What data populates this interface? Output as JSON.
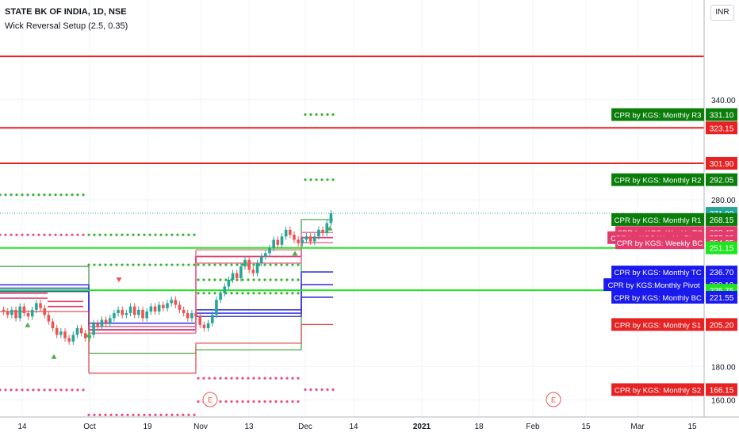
{
  "header": {
    "title": "STATE BK OF INDIA, 1D, NSE",
    "indicator": "Wick Reversal Setup (2.5, 0.35)",
    "currency": "INR"
  },
  "chart_data": {
    "type": "candlestick",
    "y_range": [
      148,
      372
    ],
    "y_ticks": [
      {
        "value": 340,
        "label": "340.00"
      },
      {
        "value": 280,
        "label": "280.00"
      },
      {
        "value": 180,
        "label": "180.00"
      },
      {
        "value": 160,
        "label": "160.00"
      }
    ],
    "x_ticks": [
      "14",
      "Oct",
      "19",
      "Nov",
      "13",
      "Dec",
      "14",
      "2021",
      "18",
      "Feb",
      "15",
      "Mar",
      "15"
    ],
    "x_ticks_bold": [
      "2021"
    ],
    "earnings_markers": [
      "E",
      "E"
    ],
    "price_labels": [
      {
        "value": 331.1,
        "price": "331.10",
        "text": "CPR by KGS: Monthly R3",
        "color": "#0a7d0a"
      },
      {
        "value": 323.15,
        "price": "323.15",
        "text": "",
        "color": "#e62222"
      },
      {
        "value": 301.9,
        "price": "301.90",
        "text": "",
        "color": "#e62222"
      },
      {
        "value": 292.05,
        "price": "292.05",
        "text": "CPR by KGS: Monthly R2",
        "color": "#0a7d0a"
      },
      {
        "value": 271.9,
        "price": "271.90",
        "text": "",
        "color": "#26a69a"
      },
      {
        "value": 268.15,
        "price": "268.15",
        "text": "CPR by KGS: Monthly R1",
        "color": "#0a7d0a"
      },
      {
        "value": 260.4,
        "price": "260.40",
        "text": "CPR by KGS: Weekly TC",
        "color": "#e33b6c"
      },
      {
        "value": 257.3,
        "price": "257.30",
        "text": "CPR by KGS:Weekly Pivot",
        "color": "#e33b6c"
      },
      {
        "value": 254.25,
        "price": "254.25",
        "text": "CPR by KGS: Weekly BC",
        "color": "#e33b6c"
      },
      {
        "value": 251.15,
        "price": "251.15",
        "text": "",
        "color": "#1fe51f"
      },
      {
        "value": 236.7,
        "price": "236.70",
        "text": "CPR by KGS: Monthly TC",
        "color": "#1a1aee"
      },
      {
        "value": 229.1,
        "price": "229.10",
        "text": "CPR by KGS:Monthly Pivot",
        "color": "#1a1aee"
      },
      {
        "value": 225.75,
        "price": "225.75",
        "text": "",
        "color": "#1fe51f"
      },
      {
        "value": 221.55,
        "price": "221.55",
        "text": "CPR by KGS: Monthly BC",
        "color": "#1a1aee"
      },
      {
        "value": 205.2,
        "price": "205.20",
        "text": "CPR by KGS: Monthly S1",
        "color": "#e62222"
      },
      {
        "value": 166.15,
        "price": "166.15",
        "text": "CPR by KGS: Monthly S2",
        "color": "#e62222"
      }
    ],
    "horizontal_lines": [
      {
        "value": 366,
        "color": "#e62222"
      },
      {
        "value": 323.15,
        "color": "#e62222"
      },
      {
        "value": 301.9,
        "color": "#e62222"
      },
      {
        "value": 251.15,
        "color": "#1fe51f"
      },
      {
        "value": 225.75,
        "color": "#1fe51f"
      }
    ],
    "last_price": 271.9,
    "colors": {
      "up": "#26a69a",
      "down": "#ef5350",
      "grid": "#f0f3fa",
      "axis_text": "#131722"
    }
  }
}
